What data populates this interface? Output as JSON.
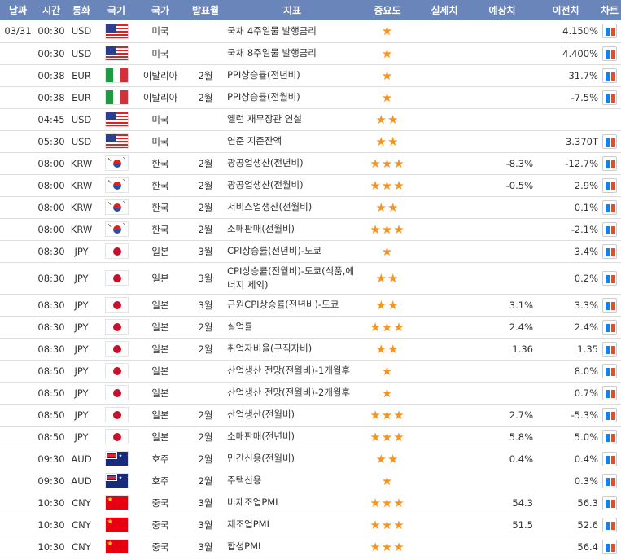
{
  "headers": [
    "날짜",
    "시간",
    "통화",
    "국기",
    "국가",
    "발표월",
    "지표",
    "중요도",
    "실제치",
    "예상치",
    "이전치",
    "차트"
  ],
  "colors": {
    "header_bg": "#6985b9",
    "star": "#f7941d"
  },
  "rows": [
    {
      "date": "03/31",
      "time": "00:30",
      "cur": "USD",
      "country": "미국",
      "month": "",
      "ind": "국채 4주일물 발행금리",
      "stars": 1,
      "actual": "",
      "forecast": "",
      "prev": "4.150%"
    },
    {
      "date": "",
      "time": "00:30",
      "cur": "USD",
      "country": "미국",
      "month": "",
      "ind": "국채 8주일물 발행금리",
      "stars": 1,
      "actual": "",
      "forecast": "",
      "prev": "4.400%"
    },
    {
      "date": "",
      "time": "00:38",
      "cur": "EUR",
      "country": "이탈리아",
      "month": "2월",
      "ind": "PPI상승률(전년비)",
      "stars": 1,
      "actual": "",
      "forecast": "",
      "prev": "31.7%"
    },
    {
      "date": "",
      "time": "00:38",
      "cur": "EUR",
      "country": "이탈리아",
      "month": "2월",
      "ind": "PPI상승률(전월비)",
      "stars": 1,
      "actual": "",
      "forecast": "",
      "prev": "-7.5%"
    },
    {
      "date": "",
      "time": "04:45",
      "cur": "USD",
      "country": "미국",
      "month": "",
      "ind": "옐런 재무장관 연설",
      "stars": 2,
      "actual": "",
      "forecast": "",
      "prev": "",
      "nochart": true
    },
    {
      "date": "",
      "time": "05:30",
      "cur": "USD",
      "country": "미국",
      "month": "",
      "ind": "연준 지준잔액",
      "stars": 2,
      "actual": "",
      "forecast": "",
      "prev": "3.370T"
    },
    {
      "date": "",
      "time": "08:00",
      "cur": "KRW",
      "country": "한국",
      "month": "2월",
      "ind": "광공업생산(전년비)",
      "stars": 3,
      "actual": "",
      "forecast": "-8.3%",
      "prev": "-12.7%"
    },
    {
      "date": "",
      "time": "08:00",
      "cur": "KRW",
      "country": "한국",
      "month": "2월",
      "ind": "광공업생산(전월비)",
      "stars": 3,
      "actual": "",
      "forecast": "-0.5%",
      "prev": "2.9%"
    },
    {
      "date": "",
      "time": "08:00",
      "cur": "KRW",
      "country": "한국",
      "month": "2월",
      "ind": "서비스업생산(전월비)",
      "stars": 2,
      "actual": "",
      "forecast": "",
      "prev": "0.1%"
    },
    {
      "date": "",
      "time": "08:00",
      "cur": "KRW",
      "country": "한국",
      "month": "2월",
      "ind": "소매판매(전월비)",
      "stars": 3,
      "actual": "",
      "forecast": "",
      "prev": "-2.1%"
    },
    {
      "date": "",
      "time": "08:30",
      "cur": "JPY",
      "country": "일본",
      "month": "3월",
      "ind": "CPI상승률(전년비)-도쿄",
      "stars": 1,
      "actual": "",
      "forecast": "",
      "prev": "3.4%"
    },
    {
      "date": "",
      "time": "08:30",
      "cur": "JPY",
      "country": "일본",
      "month": "3월",
      "ind": "CPI상승률(전월비)-도쿄(식품,에너지 제외)",
      "stars": 2,
      "actual": "",
      "forecast": "",
      "prev": "0.2%"
    },
    {
      "date": "",
      "time": "08:30",
      "cur": "JPY",
      "country": "일본",
      "month": "3월",
      "ind": "근원CPI상승률(전년비)-도쿄",
      "stars": 2,
      "actual": "",
      "forecast": "3.1%",
      "prev": "3.3%"
    },
    {
      "date": "",
      "time": "08:30",
      "cur": "JPY",
      "country": "일본",
      "month": "2월",
      "ind": "실업률",
      "stars": 3,
      "actual": "",
      "forecast": "2.4%",
      "prev": "2.4%"
    },
    {
      "date": "",
      "time": "08:30",
      "cur": "JPY",
      "country": "일본",
      "month": "2월",
      "ind": "취업자비율(구직자비)",
      "stars": 2,
      "actual": "",
      "forecast": "1.36",
      "prev": "1.35"
    },
    {
      "date": "",
      "time": "08:50",
      "cur": "JPY",
      "country": "일본",
      "month": "",
      "ind": "산업생산 전망(전월비)-1개월후",
      "stars": 1,
      "actual": "",
      "forecast": "",
      "prev": "8.0%"
    },
    {
      "date": "",
      "time": "08:50",
      "cur": "JPY",
      "country": "일본",
      "month": "",
      "ind": "산업생산 전망(전월비)-2개월후",
      "stars": 1,
      "actual": "",
      "forecast": "",
      "prev": "0.7%"
    },
    {
      "date": "",
      "time": "08:50",
      "cur": "JPY",
      "country": "일본",
      "month": "2월",
      "ind": "산업생산(전월비)",
      "stars": 3,
      "actual": "",
      "forecast": "2.7%",
      "prev": "-5.3%"
    },
    {
      "date": "",
      "time": "08:50",
      "cur": "JPY",
      "country": "일본",
      "month": "2월",
      "ind": "소매판매(전년비)",
      "stars": 3,
      "actual": "",
      "forecast": "5.8%",
      "prev": "5.0%"
    },
    {
      "date": "",
      "time": "09:30",
      "cur": "AUD",
      "country": "호주",
      "month": "2월",
      "ind": "민간신용(전월비)",
      "stars": 2,
      "actual": "",
      "forecast": "0.4%",
      "prev": "0.4%"
    },
    {
      "date": "",
      "time": "09:30",
      "cur": "AUD",
      "country": "호주",
      "month": "2월",
      "ind": "주택신용",
      "stars": 1,
      "actual": "",
      "forecast": "",
      "prev": "0.3%"
    },
    {
      "date": "",
      "time": "10:30",
      "cur": "CNY",
      "country": "중국",
      "month": "3월",
      "ind": "비제조업PMI",
      "stars": 3,
      "actual": "",
      "forecast": "54.3",
      "prev": "56.3"
    },
    {
      "date": "",
      "time": "10:30",
      "cur": "CNY",
      "country": "중국",
      "month": "3월",
      "ind": "제조업PMI",
      "stars": 3,
      "actual": "",
      "forecast": "51.5",
      "prev": "52.6"
    },
    {
      "date": "",
      "time": "10:30",
      "cur": "CNY",
      "country": "중국",
      "month": "3월",
      "ind": "합성PMI",
      "stars": 3,
      "actual": "",
      "forecast": "",
      "prev": "56.4"
    }
  ]
}
